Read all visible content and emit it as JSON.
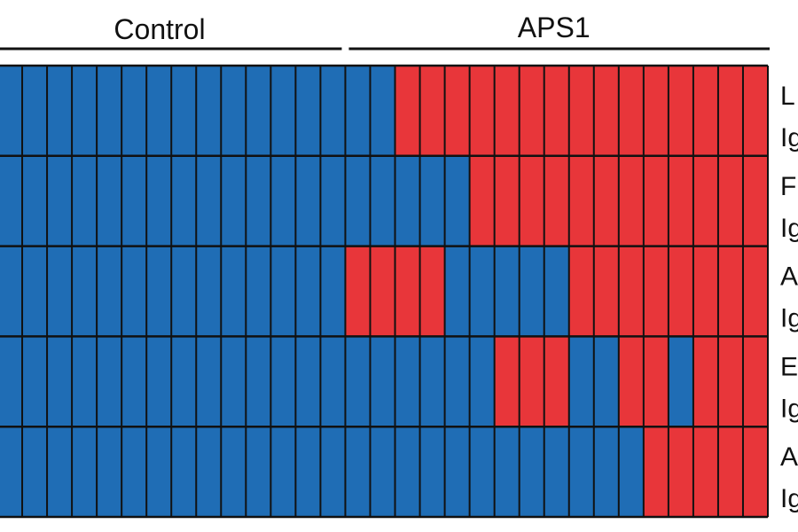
{
  "chart_data": {
    "type": "heatmap",
    "groups": [
      {
        "label": "Control",
        "columns": 14
      },
      {
        "label": "APS1",
        "columns": 17
      }
    ],
    "rows": [
      {
        "label_line1": "L",
        "label_line2": "Ig"
      },
      {
        "label_line1": "F",
        "label_line2": "Ig"
      },
      {
        "label_line1": "A",
        "label_line2": "Ig"
      },
      {
        "label_line1": "E",
        "label_line2": "Ig"
      },
      {
        "label_line1": "A",
        "label_line2": "Ig"
      }
    ],
    "states": {
      "0": "negative",
      "1": "positive"
    },
    "matrix": [
      [
        0,
        0,
        0,
        0,
        0,
        0,
        0,
        0,
        0,
        0,
        0,
        0,
        0,
        0,
        0,
        0,
        1,
        1,
        1,
        1,
        1,
        1,
        1,
        1,
        1,
        1,
        1,
        1,
        1,
        1,
        1
      ],
      [
        0,
        0,
        0,
        0,
        0,
        0,
        0,
        0,
        0,
        0,
        0,
        0,
        0,
        0,
        0,
        0,
        0,
        0,
        0,
        1,
        1,
        1,
        1,
        1,
        1,
        1,
        1,
        1,
        1,
        1,
        1
      ],
      [
        0,
        0,
        0,
        0,
        0,
        0,
        0,
        0,
        0,
        0,
        0,
        0,
        0,
        0,
        1,
        1,
        1,
        1,
        0,
        0,
        0,
        0,
        0,
        1,
        1,
        1,
        1,
        1,
        1,
        1,
        1
      ],
      [
        0,
        0,
        0,
        0,
        0,
        0,
        0,
        0,
        0,
        0,
        0,
        0,
        0,
        0,
        0,
        0,
        0,
        0,
        0,
        0,
        1,
        1,
        1,
        0,
        0,
        1,
        1,
        0,
        1,
        1,
        1
      ],
      [
        0,
        0,
        0,
        0,
        0,
        0,
        0,
        0,
        0,
        0,
        0,
        0,
        0,
        0,
        0,
        0,
        0,
        0,
        0,
        0,
        0,
        0,
        0,
        0,
        0,
        0,
        1,
        1,
        1,
        1,
        1
      ]
    ],
    "colors": {
      "negative": "#1f6db5",
      "positive": "#e8363a",
      "grid": "#111111"
    }
  }
}
